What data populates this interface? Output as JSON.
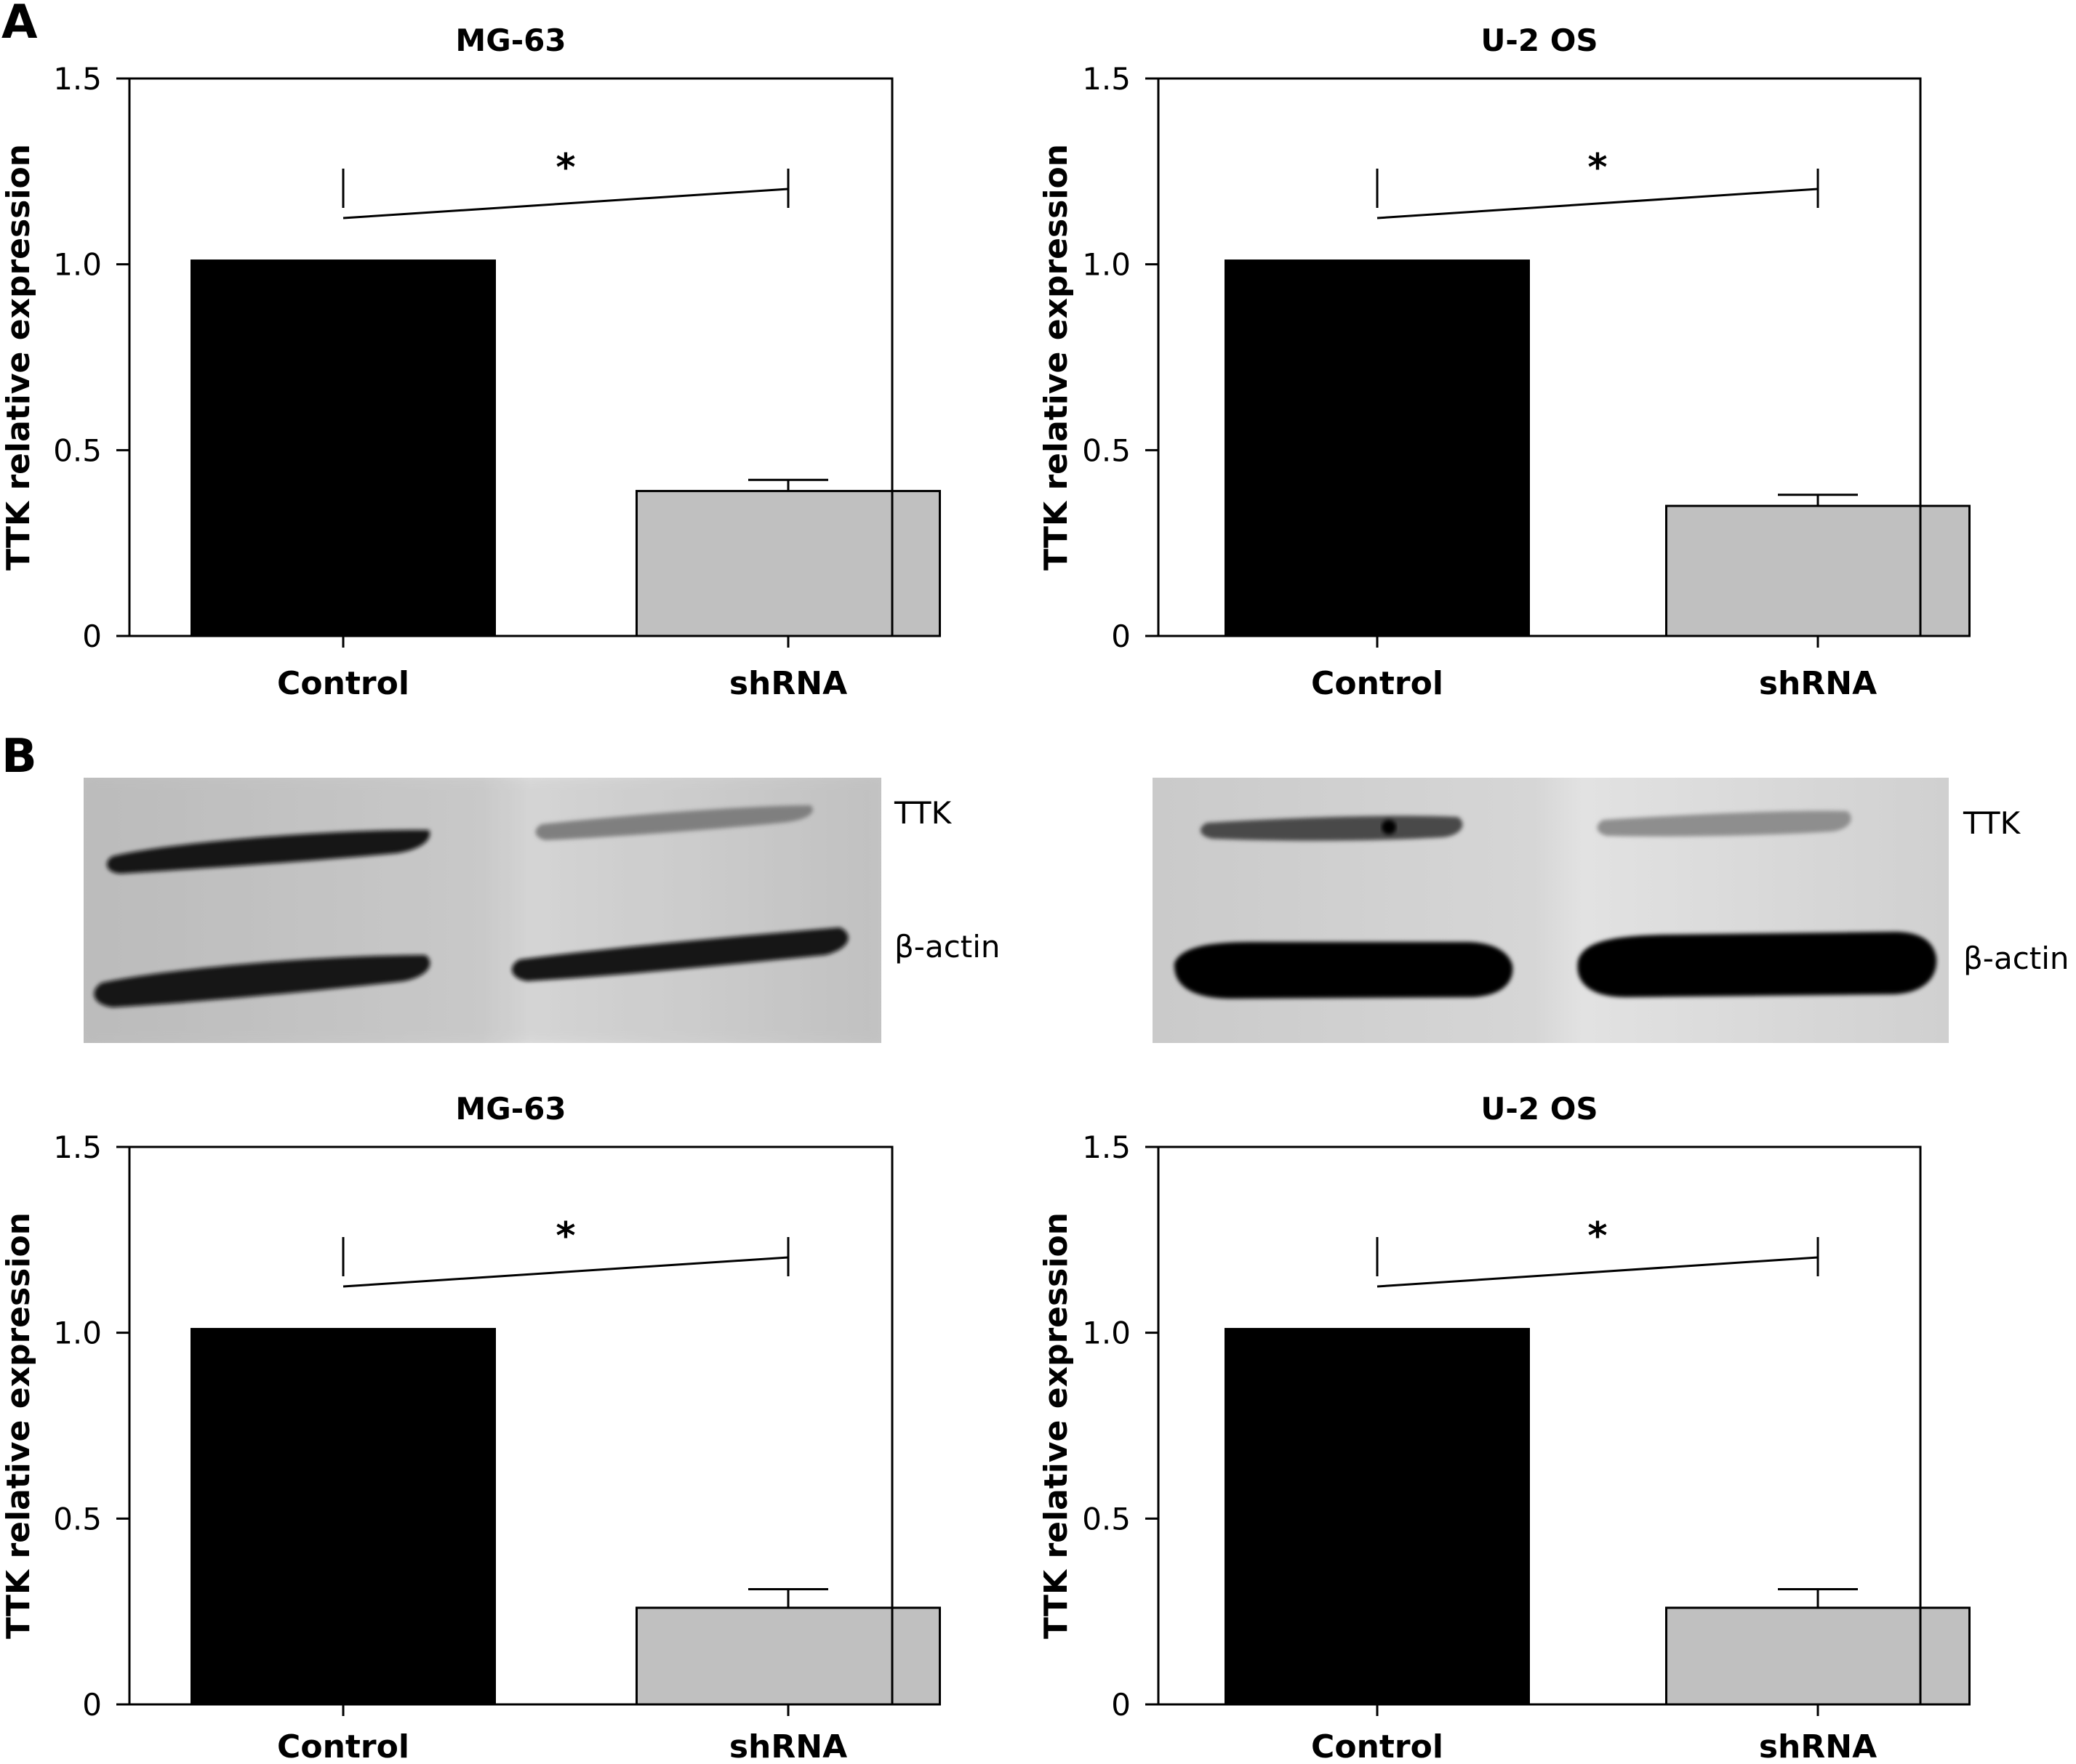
{
  "panels": {
    "a": "A",
    "b": "B"
  },
  "blots": [
    {
      "band_labels": [
        "TTK",
        "β-actin"
      ]
    },
    {
      "band_labels": [
        "TTK",
        "β-actin"
      ]
    }
  ],
  "chart_data": [
    {
      "type": "bar",
      "title": "MG-63",
      "ylabel": "TTK relative expression",
      "categories": [
        "Control",
        "shRNA"
      ],
      "values": [
        1.01,
        0.39
      ],
      "errors": [
        0,
        0.03
      ],
      "ylim": [
        0,
        1.5
      ],
      "yticks": [
        "0",
        "0.5",
        "1.0",
        "1.5"
      ],
      "significance": "*",
      "colors": [
        "#000000",
        "#c0c0c0"
      ],
      "grid": false
    },
    {
      "type": "bar",
      "title": "U-2 OS",
      "ylabel": "TTK relative expression",
      "categories": [
        "Control",
        "shRNA"
      ],
      "values": [
        1.01,
        0.35
      ],
      "errors": [
        0,
        0.03
      ],
      "ylim": [
        0,
        1.5
      ],
      "yticks": [
        "0",
        "0.5",
        "1.0",
        "1.5"
      ],
      "significance": "*",
      "colors": [
        "#000000",
        "#c0c0c0"
      ],
      "grid": false
    },
    {
      "type": "bar",
      "title": "MG-63",
      "ylabel": "TTK relative expression",
      "categories": [
        "Control",
        "shRNA"
      ],
      "values": [
        1.01,
        0.26
      ],
      "errors": [
        0,
        0.05
      ],
      "ylim": [
        0,
        1.5
      ],
      "yticks": [
        "0",
        "0.5",
        "1.0",
        "1.5"
      ],
      "significance": "*",
      "colors": [
        "#000000",
        "#c0c0c0"
      ],
      "grid": false
    },
    {
      "type": "bar",
      "title": "U-2 OS",
      "ylabel": "TTK relative expression",
      "categories": [
        "Control",
        "shRNA"
      ],
      "values": [
        1.01,
        0.26
      ],
      "errors": [
        0,
        0.05
      ],
      "ylim": [
        0,
        1.5
      ],
      "yticks": [
        "0",
        "0.5",
        "1.0",
        "1.5"
      ],
      "significance": "*",
      "colors": [
        "#000000",
        "#c0c0c0"
      ],
      "grid": false
    }
  ]
}
